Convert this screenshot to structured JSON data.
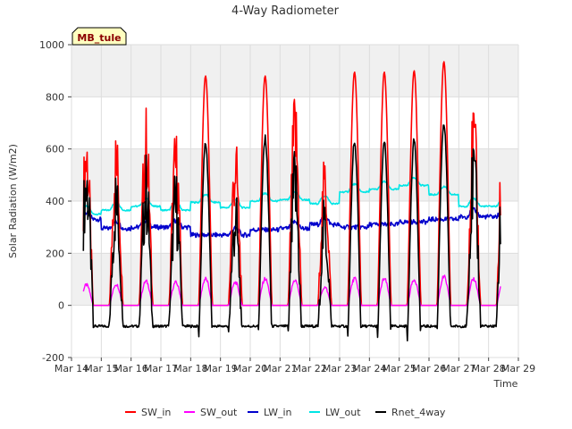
{
  "chart_data": {
    "type": "line",
    "title": "4-Way Radiometer",
    "xlabel": "Time",
    "ylabel": "Solar Radiation (W/m2)",
    "site_label": "MB_tule",
    "ylim": [
      -200,
      1000
    ],
    "yticks": [
      -200,
      0,
      200,
      400,
      600,
      800,
      1000
    ],
    "xlim": [
      14,
      29
    ],
    "xticks": [
      {
        "x": 14,
        "label": "Mar 14"
      },
      {
        "x": 15,
        "label": "Mar 15"
      },
      {
        "x": 16,
        "label": "Mar 16"
      },
      {
        "x": 17,
        "label": "Mar 17"
      },
      {
        "x": 18,
        "label": "Mar 18"
      },
      {
        "x": 19,
        "label": "Mar 19"
      },
      {
        "x": 20,
        "label": "Mar 20"
      },
      {
        "x": 21,
        "label": "Mar 21"
      },
      {
        "x": 22,
        "label": "Mar 22"
      },
      {
        "x": 23,
        "label": "Mar 23"
      },
      {
        "x": 24,
        "label": "Mar 24"
      },
      {
        "x": 25,
        "label": "Mar 25"
      },
      {
        "x": 26,
        "label": "Mar 26"
      },
      {
        "x": 27,
        "label": "Mar 27"
      },
      {
        "x": 28,
        "label": "Mar 28"
      },
      {
        "x": 29,
        "label": "Mar 29"
      }
    ],
    "grid": true,
    "legend_position": "bottom",
    "series": [
      {
        "name": "SW_in",
        "color": "#ff0000",
        "daily_peak": [
          720,
          695,
          780,
          690,
          880,
          665,
          880,
          850,
          580,
          895,
          895,
          900,
          935,
          800
        ]
      },
      {
        "name": "SW_out",
        "color": "#ff00ff",
        "daily_peak": [
          85,
          88,
          100,
          95,
          110,
          95,
          110,
          105,
          75,
          110,
          110,
          108,
          118,
          110
        ]
      },
      {
        "name": "LW_in",
        "color": "#0000cc",
        "daily_mean": [
          330,
          295,
          300,
          300,
          270,
          270,
          290,
          295,
          310,
          300,
          310,
          320,
          330,
          340
        ]
      },
      {
        "name": "LW_out",
        "color": "#00e5e5",
        "daily_peak": [
          380,
          395,
          410,
          395,
          425,
          405,
          430,
          435,
          420,
          465,
          475,
          490,
          455,
          410
        ]
      },
      {
        "name": "Rnet_4way",
        "color": "#000000",
        "daily_peak": [
          610,
          490,
          550,
          500,
          615,
          520,
          615,
          600,
          420,
          630,
          640,
          650,
          680,
          520
        ],
        "night_value": -80
      }
    ],
    "x_start": 14.4,
    "x_end": 28.4
  }
}
